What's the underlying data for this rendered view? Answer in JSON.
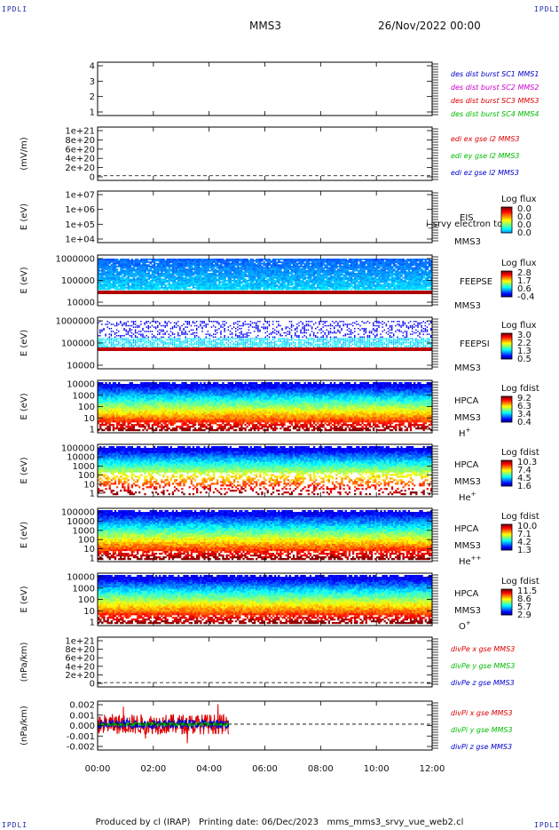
{
  "header": {
    "corner_label": "IPDLI",
    "title": "MMS3",
    "datetime": "26/Nov/2022 00:00"
  },
  "footer": {
    "produced_by": "Produced by cl (IRAP)",
    "printing_date": "Printing date: 06/Dec/2023",
    "script": "mms_mms3_srvy_vue_web2.cl"
  },
  "x_axis": {
    "ticks": [
      "00:00",
      "02:00",
      "04:00",
      "06:00",
      "08:00",
      "10:00",
      "12:00"
    ]
  },
  "chart_data": [
    {
      "type": "line",
      "panel": "burst",
      "ylabel": "",
      "yticks": [
        "4",
        "3",
        "2",
        "1"
      ],
      "ylim": [
        0.5,
        4.5
      ],
      "grid": false,
      "legend": [
        {
          "text": "des dist burst SC1 MMS1",
          "color": "#0000cc"
        },
        {
          "text": "des dist burst SC2 MMS2",
          "color": "#cc00cc"
        },
        {
          "text": "des dist burst SC3 MMS3",
          "color": "#dd0000"
        },
        {
          "text": "des dist burst SC4 MMS4",
          "color": "#00bb00"
        }
      ],
      "series": []
    },
    {
      "type": "line",
      "panel": "efield",
      "ylabel": "(mV/m)",
      "yticks": [
        "1e+21",
        "8e+20",
        "6e+20",
        "4e+20",
        "2e+20",
        "0"
      ],
      "ylim": [
        -1e+20,
        1.05e+21
      ],
      "zero_line": true,
      "legend": [
        {
          "text": "edi ex gse l2 MMS3",
          "color": "#dd0000"
        },
        {
          "text": "edi ey gse l2 MMS3",
          "color": "#00bb00"
        },
        {
          "text": "edi ez gse l2 MMS3",
          "color": "#0000cc"
        }
      ],
      "series": []
    },
    {
      "type": "heatmap",
      "panel": "eis",
      "ylabel": "E (eV)",
      "yticks": [
        "1e+07",
        "1e+06",
        "1e+05",
        "1e+04"
      ],
      "ylim": [
        10000,
        10000000
      ],
      "log_y": true,
      "labels": [
        "EIS",
        "MMS3"
      ],
      "overlay_text": "i_srvy electron to",
      "colorbar": {
        "title": "Log flux",
        "ticks": [
          "0.0",
          "0.0",
          "0.0",
          "0.0"
        ]
      },
      "data": {
        "style": "empty"
      }
    },
    {
      "type": "heatmap",
      "panel": "feepse",
      "ylabel": "E (eV)",
      "yticks": [
        "1000000",
        "100000",
        "10000"
      ],
      "ylim": [
        10000,
        1000000
      ],
      "log_y": true,
      "labels": [
        "FEEPSE",
        "MMS3"
      ],
      "colorbar": {
        "title": "Log flux",
        "ticks": [
          "2.8",
          "1.7",
          "0.6",
          "-0.4"
        ]
      },
      "data": {
        "style": "feepse",
        "x_end_hours": 12
      }
    },
    {
      "type": "heatmap",
      "panel": "feepsi",
      "ylabel": "E (eV)",
      "yticks": [
        "1000000",
        "100000",
        "10000"
      ],
      "ylim": [
        10000,
        1000000
      ],
      "log_y": true,
      "labels": [
        "FEEPSI",
        "MMS3"
      ],
      "colorbar": {
        "title": "Log flux",
        "ticks": [
          "3.0",
          "2.2",
          "1.3",
          "0.5"
        ]
      },
      "data": {
        "style": "feepsi",
        "x_end_hours": 12
      }
    },
    {
      "type": "heatmap",
      "panel": "hpca_h",
      "ylabel": "E (eV)",
      "yticks": [
        "10000",
        "1000",
        "100",
        "10",
        "1"
      ],
      "ylim": [
        1,
        30000
      ],
      "log_y": true,
      "labels": [
        "HPCA",
        "MMS3"
      ],
      "species": {
        "base": "H",
        "sup": "+"
      },
      "colorbar": {
        "title": "Log fdist",
        "ticks": [
          "9.2",
          "6.3",
          "3.4",
          "0.4"
        ]
      },
      "data": {
        "style": "hpca",
        "x_end_hours": 12
      }
    },
    {
      "type": "heatmap",
      "panel": "hpca_he1",
      "ylabel": "E (eV)",
      "yticks": [
        "100000",
        "10000",
        "1000",
        "100",
        "10",
        "1"
      ],
      "ylim": [
        1,
        100000
      ],
      "log_y": true,
      "labels": [
        "HPCA",
        "MMS3"
      ],
      "species": {
        "base": "He",
        "sup": "+"
      },
      "colorbar": {
        "title": "Log fdist",
        "ticks": [
          "10.3",
          "7.4",
          "4.5",
          "1.6"
        ]
      },
      "data": {
        "style": "hpca_sparse",
        "x_end_hours": 12
      }
    },
    {
      "type": "heatmap",
      "panel": "hpca_he2",
      "ylabel": "E (eV)",
      "yticks": [
        "100000",
        "10000",
        "1000",
        "100",
        "10",
        "1"
      ],
      "ylim": [
        1,
        100000
      ],
      "log_y": true,
      "labels": [
        "HPCA",
        "MMS3"
      ],
      "species": {
        "base": "He",
        "sup": "++"
      },
      "colorbar": {
        "title": "Log fdist",
        "ticks": [
          "10.0",
          "7.1",
          "4.2",
          "1.3"
        ]
      },
      "data": {
        "style": "hpca",
        "x_end_hours": 12
      }
    },
    {
      "type": "heatmap",
      "panel": "hpca_o",
      "ylabel": "E (eV)",
      "yticks": [
        "10000",
        "1000",
        "100",
        "10",
        "1"
      ],
      "ylim": [
        1,
        30000
      ],
      "log_y": true,
      "labels": [
        "HPCA",
        "MMS3"
      ],
      "species": {
        "base": "O",
        "sup": "+"
      },
      "colorbar": {
        "title": "Log fdist",
        "ticks": [
          "11.5",
          "8.6",
          "5.7",
          "2.9"
        ]
      },
      "data": {
        "style": "hpca",
        "x_end_hours": 12
      }
    },
    {
      "type": "line",
      "panel": "divpe",
      "ylabel": "(nPa/km)",
      "yticks": [
        "1e+21",
        "8e+20",
        "6e+20",
        "4e+20",
        "2e+20",
        "0"
      ],
      "ylim": [
        -1e+20,
        1.05e+21
      ],
      "zero_line": true,
      "legend": [
        {
          "text": "divPe x gse MMS3",
          "color": "#dd0000"
        },
        {
          "text": "divPe y gse MMS3",
          "color": "#00bb00"
        },
        {
          "text": "divPe z gse MMS3",
          "color": "#0000cc"
        }
      ],
      "series": []
    },
    {
      "type": "line",
      "panel": "divpi",
      "ylabel": "(nPa/km)",
      "yticks": [
        "0.002",
        "0.001",
        "0.000",
        "-0.001",
        "-0.002"
      ],
      "ylim": [
        -0.0028,
        0.0025
      ],
      "zero_line": true,
      "legend": [
        {
          "text": "divPi x gse MMS3",
          "color": "#dd0000"
        },
        {
          "text": "divPi y gse MMS3",
          "color": "#00bb00"
        },
        {
          "text": "divPi z gse MMS3",
          "color": "#0000cc"
        }
      ],
      "series": [
        {
          "name": "divPi x gse MMS3",
          "color": "#dd0000",
          "x_range_hours": [
            0,
            4.7
          ],
          "amplitude": 0.0011,
          "spike_amplitude": 0.0022
        },
        {
          "name": "divPi z gse MMS3",
          "color": "#0000cc",
          "x_range_hours": [
            0,
            4.7
          ],
          "amplitude": 0.0005,
          "spike_amplitude": 0.0008
        },
        {
          "name": "divPi y gse MMS3",
          "color": "#00bb00",
          "x_range_hours": [
            0,
            4.7
          ],
          "amplitude": 0.00015,
          "spike_amplitude": 0.0003
        }
      ]
    }
  ]
}
